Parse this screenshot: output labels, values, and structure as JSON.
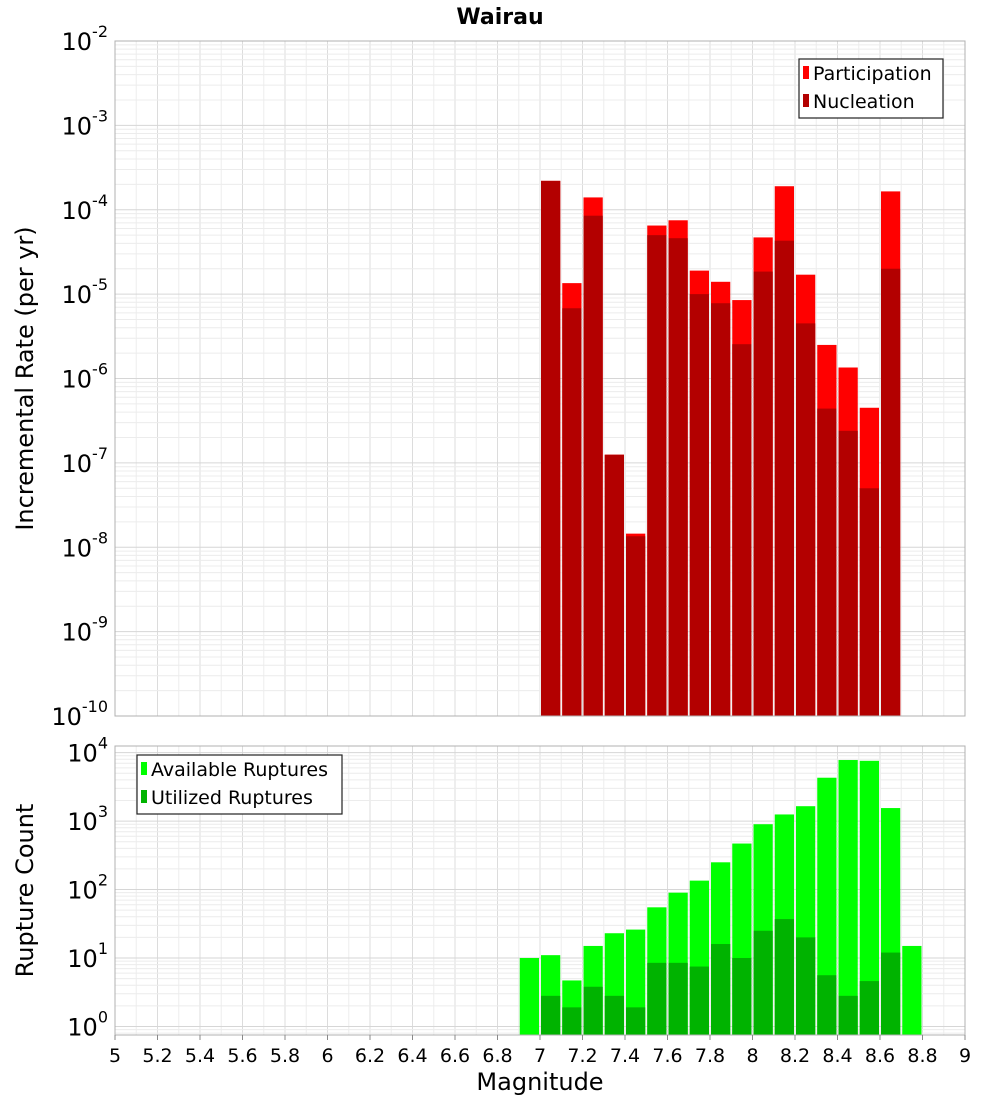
{
  "chart_data": [
    {
      "type": "bar",
      "title": "Wairau",
      "ylabel": "Incremental Rate (per yr)",
      "xlabel": "",
      "y_scale": "log",
      "ylim": [
        1e-10,
        0.01
      ],
      "xlim": [
        5,
        9
      ],
      "bin_width": 0.1,
      "grid": true,
      "legend_placement": "top-right",
      "y_tick_labels": [
        {
          "base": "10",
          "exp": "-10",
          "value": 1e-10
        },
        {
          "base": "10",
          "exp": "-9",
          "value": 1e-09
        },
        {
          "base": "10",
          "exp": "-8",
          "value": 1e-08
        },
        {
          "base": "10",
          "exp": "-7",
          "value": 1e-07
        },
        {
          "base": "10",
          "exp": "-6",
          "value": 1e-06
        },
        {
          "base": "10",
          "exp": "-5",
          "value": 1e-05
        },
        {
          "base": "10",
          "exp": "-4",
          "value": 0.0001
        },
        {
          "base": "10",
          "exp": "-3",
          "value": 0.001
        },
        {
          "base": "10",
          "exp": "-2",
          "value": 0.01
        }
      ],
      "x": [
        7.05,
        7.15,
        7.25,
        7.35,
        7.45,
        7.55,
        7.65,
        7.75,
        7.85,
        7.95,
        8.05,
        8.15,
        8.25,
        8.35,
        8.45,
        8.55,
        8.65
      ],
      "series": [
        {
          "name": "Participation",
          "color": "#ff0000",
          "values": [
            0.00022,
            1.35e-05,
            0.00014,
            1.25e-07,
            1.45e-08,
            6.5e-05,
            7.5e-05,
            1.9e-05,
            1.4e-05,
            8.5e-06,
            4.7e-05,
            0.00019,
            1.7e-05,
            2.5e-06,
            1.35e-06,
            4.5e-07,
            0.000165
          ]
        },
        {
          "name": "Nucleation",
          "color": "#b30000",
          "values": [
            0.00022,
            6.8e-06,
            8.5e-05,
            1.25e-07,
            1.35e-08,
            5e-05,
            4.6e-05,
            1e-05,
            7.8e-06,
            2.55e-06,
            1.85e-05,
            4.3e-05,
            4.5e-06,
            4.4e-07,
            2.4e-07,
            5e-08,
            2e-05
          ]
        }
      ]
    },
    {
      "type": "bar",
      "title": "",
      "ylabel": "Rupture Count",
      "xlabel": "Magnitude",
      "y_scale": "log",
      "ylim": [
        0.75,
        12500
      ],
      "xlim": [
        5,
        9
      ],
      "bin_width": 0.1,
      "grid": true,
      "legend_placement": "top-left",
      "y_tick_labels": [
        {
          "base": "10",
          "exp": "0",
          "value": 1
        },
        {
          "base": "10",
          "exp": "1",
          "value": 10
        },
        {
          "base": "10",
          "exp": "2",
          "value": 100
        },
        {
          "base": "10",
          "exp": "3",
          "value": 1000
        },
        {
          "base": "10",
          "exp": "4",
          "value": 10000
        }
      ],
      "x_tick_labels": [
        "5",
        "5.2",
        "5.4",
        "5.6",
        "5.8",
        "6",
        "6.2",
        "6.4",
        "6.6",
        "6.8",
        "7",
        "7.2",
        "7.4",
        "7.6",
        "7.8",
        "8",
        "8.2",
        "8.4",
        "8.6",
        "8.8",
        "9"
      ],
      "x": [
        6.95,
        7.05,
        7.15,
        7.25,
        7.35,
        7.45,
        7.55,
        7.65,
        7.75,
        7.85,
        7.95,
        8.05,
        8.15,
        8.25,
        8.35,
        8.45,
        8.55,
        8.65,
        8.75
      ],
      "series": [
        {
          "name": "Available Ruptures",
          "color": "#00ff00",
          "values": [
            10,
            11,
            4.7,
            15,
            23,
            26,
            55,
            90,
            135,
            250,
            470,
            900,
            1250,
            1650,
            4300,
            7800,
            7600,
            1550,
            15
          ]
        },
        {
          "name": "Utilized Ruptures",
          "color": "#00b300",
          "values": [
            null,
            2.8,
            1.9,
            3.8,
            2.8,
            1.9,
            8.5,
            8.5,
            7.5,
            16,
            10,
            25,
            37,
            20,
            5.6,
            2.8,
            4.6,
            12,
            null
          ]
        }
      ]
    }
  ]
}
